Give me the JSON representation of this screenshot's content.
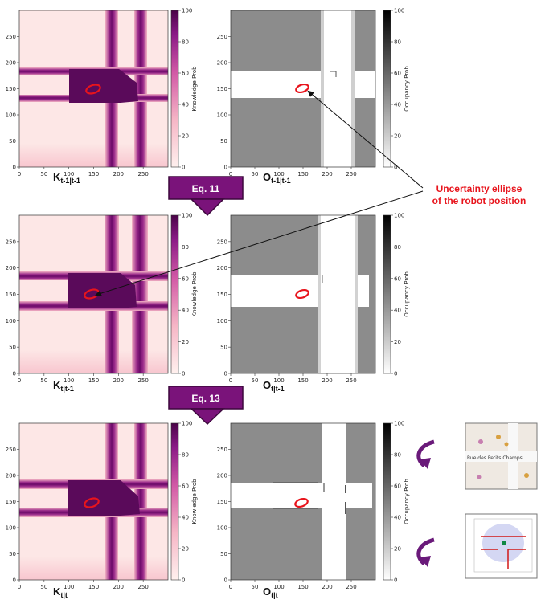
{
  "panels": [
    {
      "id": "k-prev",
      "kind": "knowledge",
      "title_main": "K",
      "title_sub": "t-1|t-1",
      "colorbar_label": "Knowledge Prob"
    },
    {
      "id": "o-prev",
      "kind": "occupancy",
      "title_main": "O",
      "title_sub": "t-1|t-1",
      "colorbar_label": "Occupancy Prob"
    },
    {
      "id": "k-pred",
      "kind": "knowledge",
      "title_main": "K",
      "title_sub": "t|t-1",
      "colorbar_label": "Knowledge Prob"
    },
    {
      "id": "o-pred",
      "kind": "occupancy",
      "title_main": "O",
      "title_sub": "t|t-1",
      "colorbar_label": "Occupancy Prob"
    },
    {
      "id": "k-upd",
      "kind": "knowledge",
      "title_main": "K",
      "title_sub": "t|t",
      "colorbar_label": "Knowledge Prob"
    },
    {
      "id": "o-upd",
      "kind": "occupancy",
      "title_main": "O",
      "title_sub": "t|t",
      "colorbar_label": "Occupancy Prob"
    }
  ],
  "axes": {
    "x_ticks": [
      "0",
      "50",
      "100",
      "150",
      "200",
      "250"
    ],
    "y_ticks": [
      "0",
      "50",
      "100",
      "150",
      "200",
      "250"
    ],
    "colorbar_ticks": [
      "0",
      "20",
      "40",
      "60",
      "80",
      "100"
    ]
  },
  "equations": [
    {
      "label": "Eq. 11"
    },
    {
      "label": "Eq. 13"
    }
  ],
  "annotation": {
    "line1": "Uncertainty ellipse",
    "line2": "of the robot position"
  },
  "inset_map": {
    "street_label": "Rue des Petits Champs"
  },
  "colors": {
    "knowledge_dark": "#5a0a5a",
    "knowledge_light": "#fde6e6",
    "occupancy_gray": "#888888",
    "occupancy_free": "#ffffff",
    "ellipse": "#e8141c",
    "equation_box": "#7a137a",
    "annotation": "#e8141c"
  }
}
